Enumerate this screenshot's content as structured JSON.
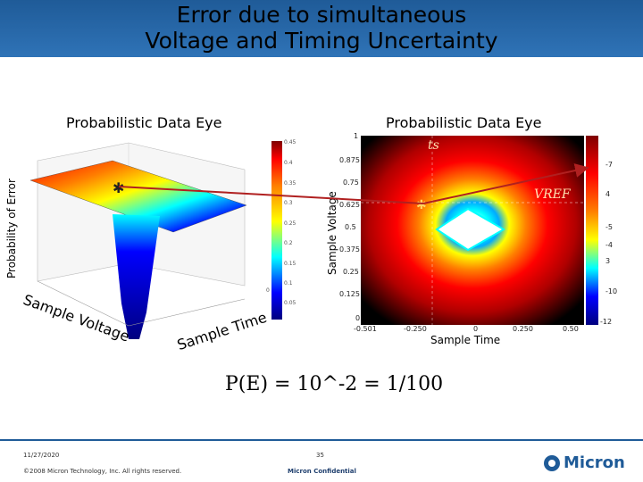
{
  "slide": {
    "title_line1": "Error due to simultaneous",
    "title_line2": "Voltage and Timing Uncertainty",
    "left_plot_title": "Probabilistic Data Eye",
    "right_plot_title": "Probabilistic Data Eye",
    "left_z_label": "Probability of Error",
    "left_y_label": "Sample Voltage",
    "left_x_label": "Sample Time",
    "right_y_label": "Sample Voltage",
    "right_x_label": "Sample Time",
    "ts_label": "ts",
    "vref_label": "VREF",
    "equation": "P(E) = 10^-2 = 1/100",
    "footer_date": "11/27/2020",
    "footer_copyright": "©2008 Micron Technology, Inc. All rights reserved.",
    "footer_page": "35",
    "footer_conf": "Micron Confidential",
    "logo_text": "Micron"
  },
  "right_plot": {
    "y_ticks": [
      "1",
      "0.875",
      "0.75",
      "0.625",
      "0.5",
      "0.375",
      "0.25",
      "0.125",
      "0"
    ],
    "x_ticks": [
      "-0.501",
      "-0.250",
      "0",
      "0.250",
      "0.50"
    ]
  },
  "left_colorbar": {
    "ticks": [
      "0.45",
      "0.4",
      "0.35",
      "0.3",
      "0.25",
      "0.2",
      "0.15",
      "0.1",
      "0.05",
      "0"
    ]
  },
  "right_colorbar": {
    "ticks": [
      "-7",
      "4",
      "-5",
      "-4",
      "3",
      "-10",
      "-12"
    ]
  }
}
